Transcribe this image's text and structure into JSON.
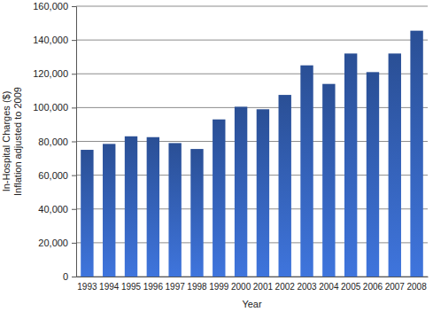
{
  "chart_data": {
    "type": "bar",
    "categories": [
      "1993",
      "1994",
      "1995",
      "1996",
      "1997",
      "1998",
      "1999",
      "2000",
      "2001",
      "2002",
      "2003",
      "2004",
      "2005",
      "2006",
      "2007",
      "2008"
    ],
    "values": [
      75000,
      78500,
      83000,
      82500,
      79000,
      75500,
      93000,
      100500,
      99000,
      107500,
      125000,
      114000,
      132000,
      121000,
      132000,
      145500
    ],
    "color": "#2f58a6",
    "xlabel": "Year",
    "ylabel": [
      "In-Hospital Charges ($)",
      "Inflation adjusted to 2009"
    ],
    "ylim": [
      0,
      160000
    ],
    "yticks": [
      0,
      {
        "value": 20000,
        "label": "20,000"
      },
      {
        "value": 40000,
        "label": "40,000"
      },
      {
        "value": 60000,
        "label": "60,000"
      },
      {
        "value": 80000,
        "label": "80,000"
      },
      {
        "value": 100000,
        "label": "100,000"
      },
      {
        "value": 120000,
        "label": "120,000"
      },
      {
        "value": 140000,
        "label": "140,000"
      },
      {
        "value": 160000,
        "label": "160,000"
      }
    ],
    "grid": true
  }
}
